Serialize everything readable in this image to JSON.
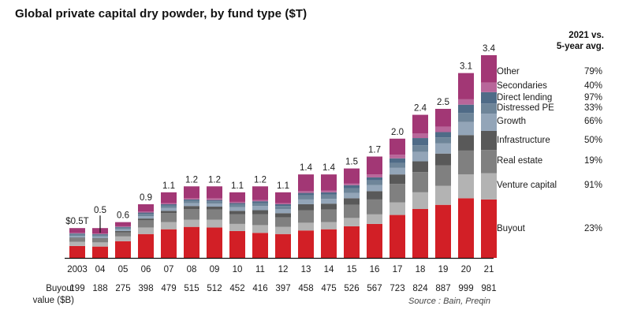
{
  "chart_data": {
    "type": "bar",
    "stacked": true,
    "title": "Global private capital dry powder, by fund type ($T)",
    "xlabel": "",
    "ylabel": "",
    "ylim": [
      0,
      3.4
    ],
    "grid": false,
    "categories": [
      "2003",
      "04",
      "05",
      "06",
      "07",
      "08",
      "09",
      "10",
      "11",
      "12",
      "13",
      "14",
      "15",
      "16",
      "17",
      "18",
      "19",
      "20",
      "21"
    ],
    "total_labels": [
      "$0.5T",
      "0.5",
      "0.6",
      "0.9",
      "1.1",
      "1.2",
      "1.2",
      "1.1",
      "1.2",
      "1.1",
      "1.4",
      "1.4",
      "1.5",
      "1.7",
      "2.0",
      "2.4",
      "2.5",
      "3.1",
      "3.4"
    ],
    "totals": [
      0.5,
      0.5,
      0.6,
      0.9,
      1.1,
      1.2,
      1.2,
      1.1,
      1.2,
      1.1,
      1.4,
      1.4,
      1.5,
      1.7,
      2.0,
      2.4,
      2.5,
      3.1,
      3.4
    ],
    "series": [
      {
        "name": "Buyout",
        "color": "#d21f26",
        "values": [
          0.2,
          0.19,
          0.28,
          0.4,
          0.48,
          0.52,
          0.51,
          0.45,
          0.42,
          0.4,
          0.46,
          0.48,
          0.53,
          0.57,
          0.72,
          0.82,
          0.89,
          1.0,
          0.98
        ]
      },
      {
        "name": "Venture capital",
        "color": "#b3b3b3",
        "values": [
          0.07,
          0.07,
          0.08,
          0.11,
          0.12,
          0.12,
          0.13,
          0.12,
          0.13,
          0.12,
          0.13,
          0.12,
          0.14,
          0.16,
          0.21,
          0.28,
          0.32,
          0.4,
          0.44
        ]
      },
      {
        "name": "Real estate",
        "color": "#808080",
        "values": [
          0.06,
          0.06,
          0.07,
          0.12,
          0.15,
          0.18,
          0.17,
          0.16,
          0.18,
          0.16,
          0.21,
          0.21,
          0.22,
          0.25,
          0.31,
          0.34,
          0.34,
          0.4,
          0.39
        ]
      },
      {
        "name": "Infrastructure",
        "color": "#595959",
        "values": [
          0.01,
          0.01,
          0.02,
          0.03,
          0.04,
          0.05,
          0.05,
          0.06,
          0.07,
          0.07,
          0.1,
          0.1,
          0.11,
          0.14,
          0.16,
          0.18,
          0.2,
          0.26,
          0.32
        ]
      },
      {
        "name": "Growth",
        "color": "#93a5b8",
        "values": [
          0.03,
          0.03,
          0.03,
          0.04,
          0.05,
          0.05,
          0.05,
          0.06,
          0.07,
          0.07,
          0.08,
          0.08,
          0.09,
          0.1,
          0.11,
          0.16,
          0.17,
          0.22,
          0.29
        ]
      },
      {
        "name": "Distressed PE",
        "color": "#6e8599",
        "values": [
          0.03,
          0.03,
          0.03,
          0.04,
          0.04,
          0.04,
          0.04,
          0.05,
          0.05,
          0.05,
          0.07,
          0.07,
          0.08,
          0.08,
          0.08,
          0.11,
          0.1,
          0.15,
          0.17
        ]
      },
      {
        "name": "Direct lending",
        "color": "#4f6b87",
        "values": [
          0.01,
          0.01,
          0.01,
          0.02,
          0.02,
          0.02,
          0.02,
          0.02,
          0.03,
          0.03,
          0.04,
          0.04,
          0.05,
          0.05,
          0.08,
          0.12,
          0.09,
          0.14,
          0.19
        ]
      },
      {
        "name": "Secondaries",
        "color": "#b8669a",
        "values": [
          0.01,
          0.01,
          0.01,
          0.02,
          0.02,
          0.02,
          0.03,
          0.02,
          0.02,
          0.02,
          0.03,
          0.03,
          0.03,
          0.05,
          0.06,
          0.08,
          0.09,
          0.09,
          0.16
        ]
      },
      {
        "name": "Other",
        "color": "#a23775",
        "values": [
          0.08,
          0.09,
          0.07,
          0.12,
          0.18,
          0.2,
          0.2,
          0.16,
          0.23,
          0.18,
          0.28,
          0.27,
          0.25,
          0.3,
          0.27,
          0.31,
          0.3,
          0.44,
          0.46
        ]
      }
    ],
    "legend_placement": "right",
    "legend_header": [
      "2021 vs.",
      "5-year avg."
    ],
    "legend": [
      {
        "name": "Other",
        "change": "79%"
      },
      {
        "name": "Secondaries",
        "change": "40%"
      },
      {
        "name": "Direct lending",
        "change": "97%"
      },
      {
        "name": "Distressed PE",
        "change": "33%"
      },
      {
        "name": "Growth",
        "change": "66%"
      },
      {
        "name": "Infrastructure",
        "change": "50%"
      },
      {
        "name": "Real estate",
        "change": "19%"
      },
      {
        "name": "Venture capital",
        "change": "91%"
      },
      {
        "name": "Buyout",
        "change": "23%"
      }
    ],
    "buyout_row": {
      "label_line1": "Buyout",
      "label_line2": "value ($B)",
      "values": [
        "199",
        "188",
        "275",
        "398",
        "479",
        "515",
        "512",
        "452",
        "416",
        "397",
        "458",
        "475",
        "526",
        "567",
        "723",
        "824",
        "887",
        "999",
        "981"
      ]
    },
    "source": "Source : Bain, Preqin"
  }
}
